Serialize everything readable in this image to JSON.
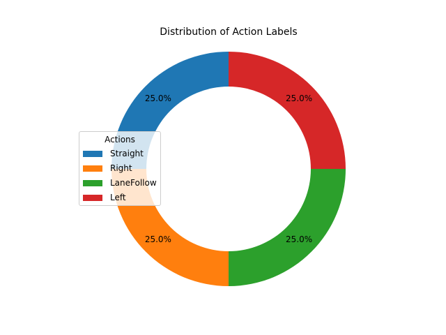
{
  "chart_data": {
    "type": "pie",
    "title": "Distribution of Action Labels",
    "categories": [
      "Straight",
      "Right",
      "LaneFollow",
      "Left"
    ],
    "values": [
      25.0,
      25.0,
      25.0,
      25.0
    ],
    "value_labels": [
      "25.0%",
      "25.0%",
      "25.0%",
      "25.0%"
    ],
    "colors": [
      "#1f77b4",
      "#ff7f0e",
      "#2ca02c",
      "#d62728"
    ],
    "donut": true,
    "start_angle_deg": 90,
    "direction": "counterclockwise",
    "legend": {
      "title": "Actions",
      "placement": "center-left"
    }
  }
}
